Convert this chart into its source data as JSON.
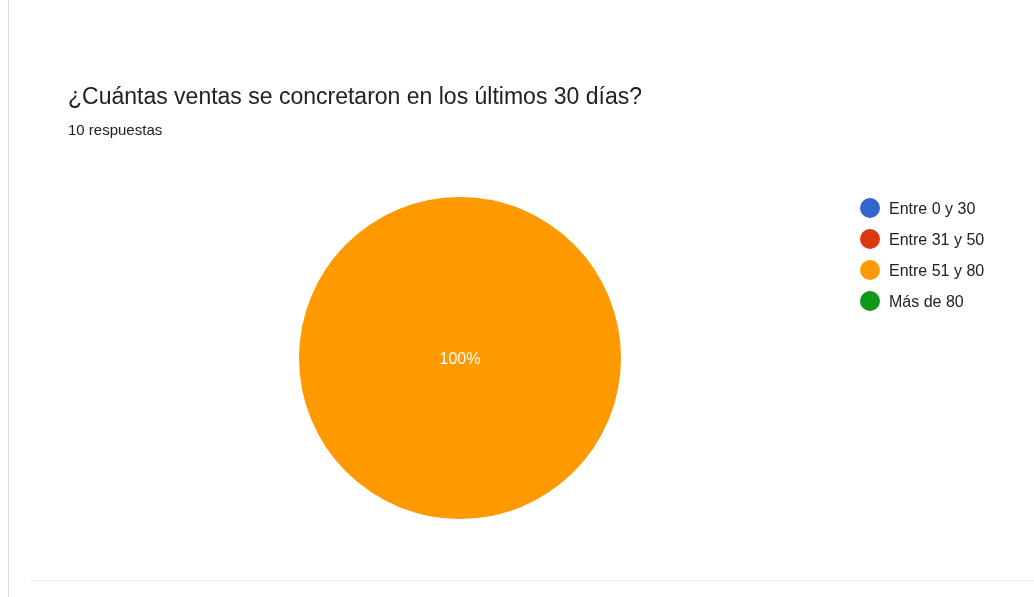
{
  "chart_data": {
    "type": "pie",
    "title": "¿Cuántas ventas se concretaron en los últimos 30 días?",
    "subtitle": "10 respuestas",
    "categories": [
      "Entre 0 y 30",
      "Entre 31 y 50",
      "Entre 51 y 80",
      "Más de 80"
    ],
    "values": [
      0,
      0,
      100,
      0
    ],
    "colors": [
      "#3366cc",
      "#dc3912",
      "#ff9900",
      "#109618"
    ],
    "value_labels": [
      null,
      null,
      "100%",
      null
    ],
    "legend": "right"
  }
}
